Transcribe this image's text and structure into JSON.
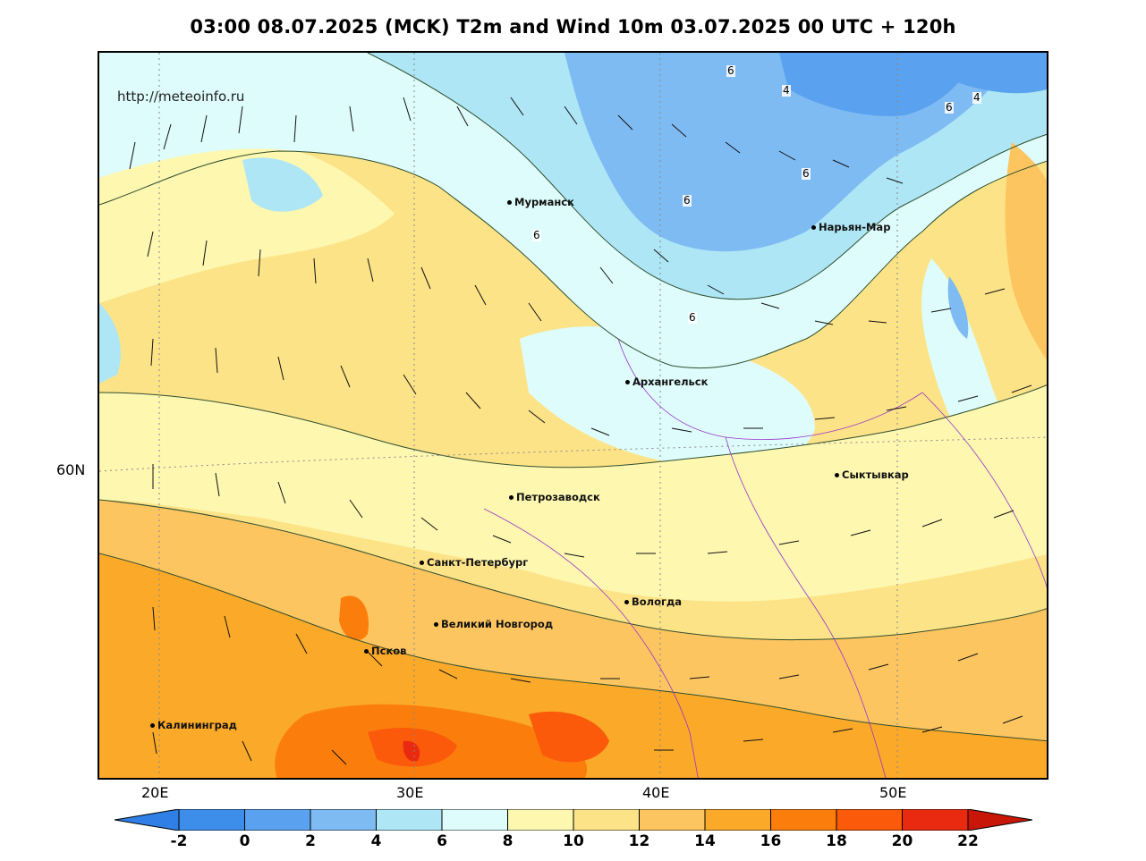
{
  "title": "03:00 08.07.2025 (MCK) T2m and Wind 10m 03.07.2025 00 UTC + 120h",
  "site_url": "http://meteoinfo.ru",
  "cities": [
    {
      "name": "Мурманск"
    },
    {
      "name": "Нарьян-Мар"
    },
    {
      "name": "Архангельск"
    },
    {
      "name": "Сыктывкар"
    },
    {
      "name": "Петрозаводск"
    },
    {
      "name": "Санкт-Петербург"
    },
    {
      "name": "Вологда"
    },
    {
      "name": "Великий Новгород"
    },
    {
      "name": "Псков"
    },
    {
      "name": "Калининград"
    }
  ],
  "contour_labels": [
    "6",
    "4",
    "6",
    "4",
    "6",
    "6",
    "6",
    "6",
    "6"
  ],
  "axis": {
    "lon_labels": [
      "20E",
      "30E",
      "40E",
      "50E"
    ],
    "lat_labels": [
      "60N"
    ]
  },
  "colorbar": {
    "ticks": [
      "-2",
      "0",
      "2",
      "4",
      "6",
      "8",
      "10",
      "12",
      "14",
      "16",
      "18",
      "20",
      "22"
    ],
    "colors": [
      "#2f7fe6",
      "#3d8eea",
      "#5aa2ef",
      "#7fbbf3",
      "#aee6f5",
      "#ddfcfb",
      "#fdf7b0",
      "#fde387",
      "#fdc560",
      "#fba928",
      "#fb7e0c",
      "#fa5a0a",
      "#ea2a10",
      "#c81709"
    ]
  }
}
